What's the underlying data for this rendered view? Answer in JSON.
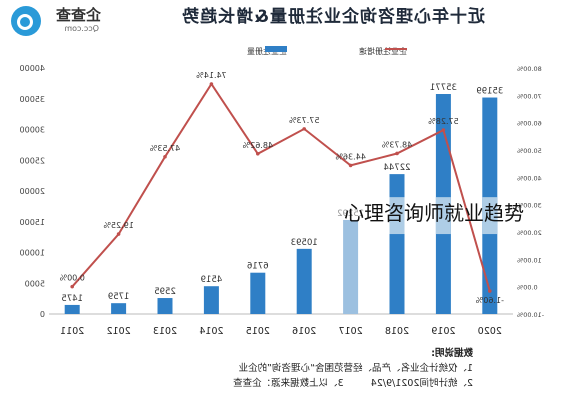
{
  "brand": {
    "name": "企查查",
    "domain": "Qcc.com",
    "color": "#2a9ad8"
  },
  "overlay_caption": "心理咨询师就业趋势",
  "notes": {
    "heading": "数据说明:",
    "line1": "1、仅统计企业名、产品、经营范围含“心理咨询”的企业",
    "line2": "2、统计时间2021/9/24",
    "line3": "3、以上数据来源：企查查"
  },
  "colors": {
    "bar": "#2f7fc6",
    "bar_highlight": "#aecde6",
    "bar_faded": "#9cc0e0",
    "line": "#c0504d",
    "axis_text": "#444444",
    "grid": "#dddddd"
  },
  "chart_data": {
    "type": "bar",
    "title": "近十年心理咨询企业注册量&增长趋势",
    "mirrored": true,
    "categories": [
      "2020",
      "2019",
      "2018",
      "2017",
      "2016",
      "2015",
      "2014",
      "2013",
      "2012",
      "2011"
    ],
    "series": [
      {
        "name": "企业注册量",
        "type": "bar",
        "values": [
          35199,
          35771,
          22744,
          15292,
          10593,
          6716,
          4519,
          2595,
          1759,
          1475
        ],
        "labels": [
          "35199",
          "35771",
          "22744",
          "15292",
          "10593",
          "6716",
          "4519",
          "2595",
          "1759",
          "1475"
        ]
      },
      {
        "name": "企业注册增速",
        "type": "line",
        "values": [
          -1.6,
          57.28,
          48.73,
          44.36,
          57.73,
          48.62,
          74.14,
          47.53,
          19.25,
          0.0
        ],
        "labels": [
          "-1.60%",
          "57.28%",
          "48.73%",
          "44.36%",
          "57.73%",
          "48.62%",
          "74.14%",
          "47.53%",
          "19.25%",
          "0.00%"
        ]
      }
    ],
    "y_left": {
      "min": -10,
      "max": 80,
      "ticks": [
        "80.00%",
        "70.00%",
        "60.00%",
        "50.00%",
        "40.00%",
        "30.00%",
        "20.00%",
        "10.00%",
        "0.00%",
        "-10.00%"
      ]
    },
    "y_right": {
      "min": 0,
      "max": 40000,
      "ticks": [
        "40000",
        "35000",
        "30000",
        "25000",
        "20000",
        "15000",
        "10000",
        "5000",
        "0"
      ]
    },
    "legend_position": "top",
    "grid": false
  }
}
